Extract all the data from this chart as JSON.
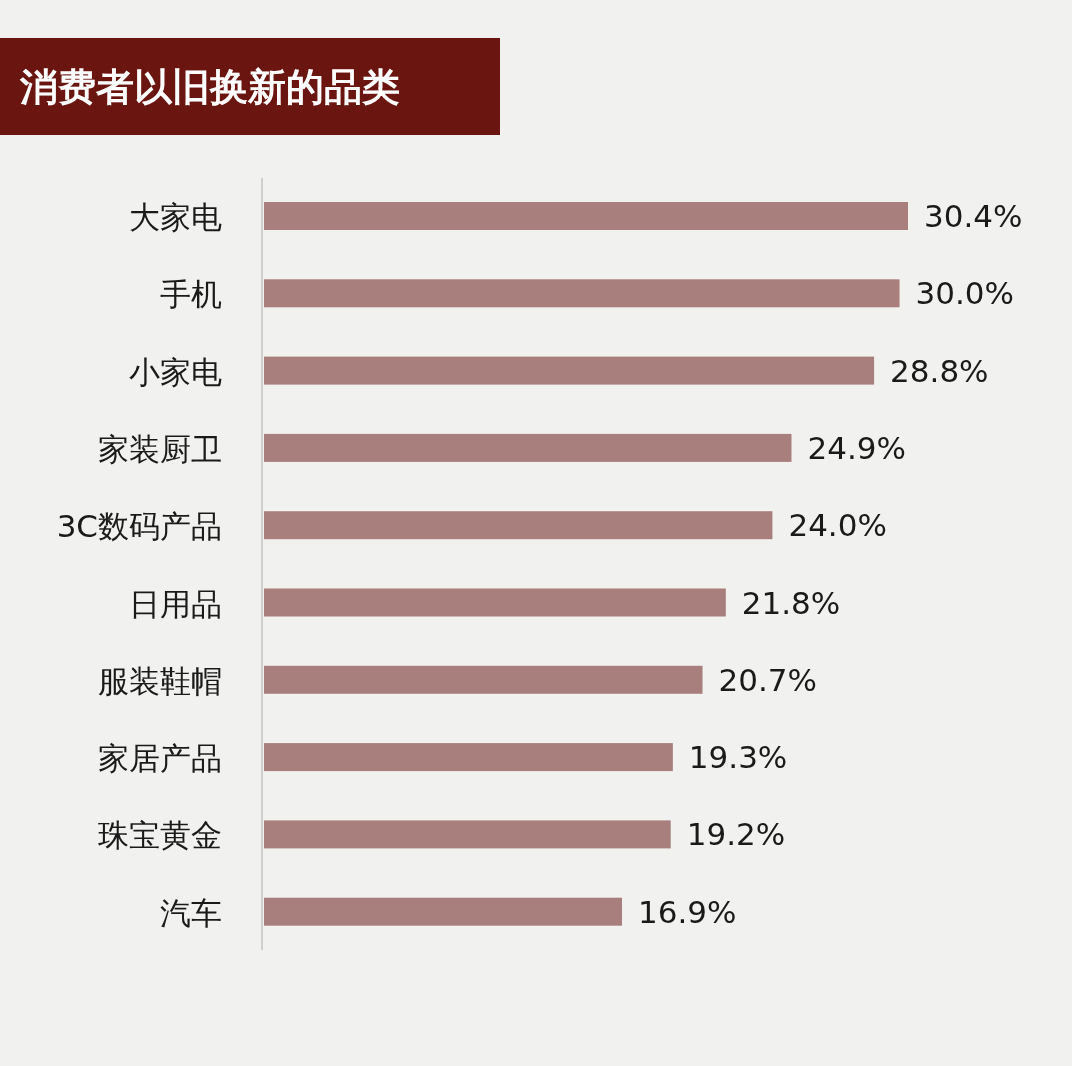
{
  "chart_data": {
    "type": "bar",
    "orientation": "horizontal",
    "title": "消费者以旧换新的品类",
    "categories": [
      "大家电",
      "手机",
      "小家电",
      "家装厨卫",
      "3C数码产品",
      "日用品",
      "服装鞋帽",
      "家居产品",
      "珠宝黄金",
      "汽车"
    ],
    "values": [
      30.4,
      30.0,
      28.8,
      24.9,
      24.0,
      21.8,
      20.7,
      19.3,
      19.2,
      16.9
    ],
    "value_labels": [
      "30.4%",
      "30.0%",
      "28.8%",
      "24.9%",
      "24.0%",
      "21.8%",
      "20.7%",
      "19.3%",
      "19.2%",
      "16.9%"
    ],
    "color": "#a87f7d"
  }
}
